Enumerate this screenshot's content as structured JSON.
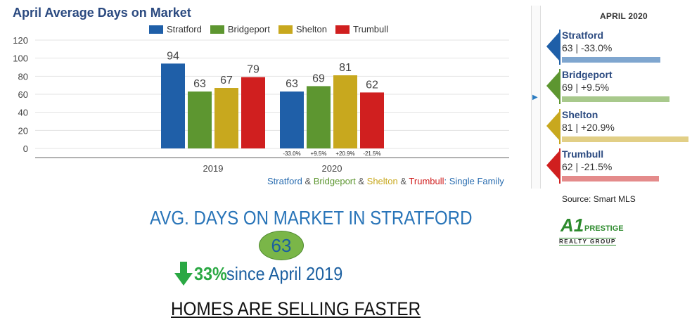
{
  "chart_data": {
    "type": "bar",
    "title": "April Average Days on Market",
    "categories": [
      "2019",
      "2020"
    ],
    "ylim": [
      0,
      120
    ],
    "yticks": [
      0,
      20,
      40,
      60,
      80,
      100,
      120
    ],
    "grid": true,
    "legend_position": "top",
    "series": [
      {
        "name": "Stratford",
        "color": "#1f5fa8",
        "values": [
          94,
          63
        ],
        "changes": [
          "",
          "-33.0%"
        ]
      },
      {
        "name": "Bridgeport",
        "color": "#5d9630",
        "values": [
          63,
          69
        ],
        "changes": [
          "",
          "+9.5%"
        ]
      },
      {
        "name": "Shelton",
        "color": "#c8a81e",
        "values": [
          67,
          81
        ],
        "changes": [
          "",
          "+20.9%"
        ]
      },
      {
        "name": "Trumbull",
        "color": "#d01f1f",
        "values": [
          79,
          62
        ],
        "changes": [
          "",
          "-21.5%"
        ]
      }
    ]
  },
  "caption": {
    "parts": [
      {
        "text": "Stratford",
        "color": "#2a6db0"
      },
      {
        "text": " & ",
        "color": "#555555"
      },
      {
        "text": "Bridgeport",
        "color": "#5d9630"
      },
      {
        "text": " & ",
        "color": "#555555"
      },
      {
        "text": "Shelton",
        "color": "#c8a81e"
      },
      {
        "text": " & ",
        "color": "#555555"
      },
      {
        "text": "Trumbull",
        "color": "#d01f1f"
      },
      {
        "text": ": Single Family",
        "color": "#2a6db0"
      }
    ]
  },
  "panel": {
    "title": "APRIL 2020",
    "max_value": 81,
    "cards": [
      {
        "name": "Stratford",
        "value": "63 | -33.0%",
        "amount": 63,
        "color": "#1f5fa8",
        "bar_color": "#7fa6cf"
      },
      {
        "name": "Bridgeport",
        "value": "69 | +9.5%",
        "amount": 69,
        "color": "#5d9630",
        "bar_color": "#a8c98c"
      },
      {
        "name": "Shelton",
        "value": "81 | +20.9%",
        "amount": 81,
        "color": "#c8a81e",
        "bar_color": "#e2cf86"
      },
      {
        "name": "Trumbull",
        "value": "62 | -21.5%",
        "amount": 62,
        "color": "#d01f1f",
        "bar_color": "#e48b8b"
      }
    ]
  },
  "source": "Source: Smart MLS",
  "logo": {
    "mark": "A1",
    "name": "PRESTIGE",
    "tagline": "REALTY GROUP"
  },
  "summary": {
    "headline": "AVG. DAYS ON MARKET IN STRATFORD",
    "value": "63",
    "change_pct": "33%",
    "change_since": " since April 2019",
    "footer": "HOMES ARE SELLING FASTER"
  }
}
